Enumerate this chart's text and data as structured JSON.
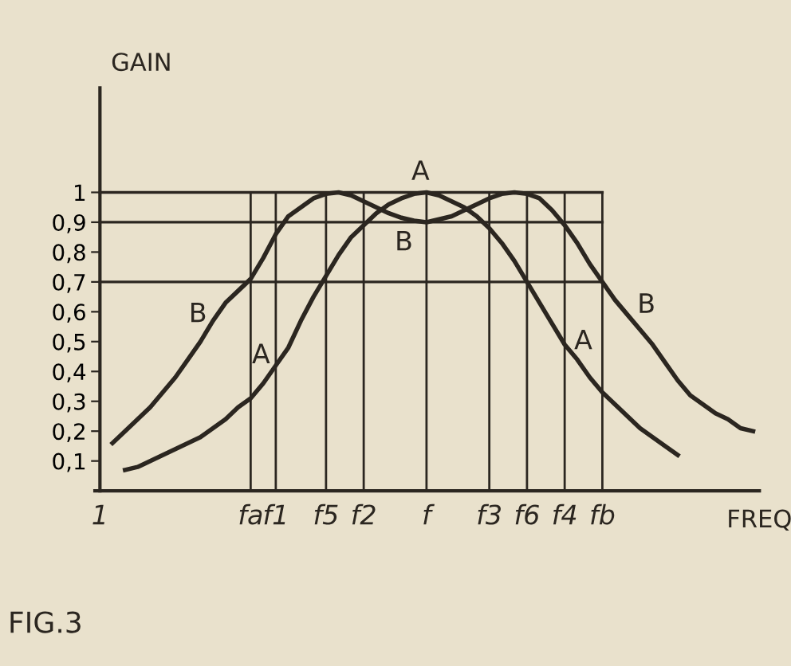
{
  "chart_data": {
    "type": "line",
    "ylabel": "GAIN",
    "xlabel": "FREQ",
    "ylim": [
      0,
      1.35
    ],
    "categories": [
      "1",
      null,
      null,
      null,
      null,
      null,
      null,
      null,
      null,
      null,
      null,
      null,
      "fa",
      null,
      "f1",
      null,
      null,
      null,
      "f5",
      null,
      null,
      "f2",
      null,
      null,
      null,
      null,
      "f",
      null,
      null,
      null,
      null,
      "f3",
      null,
      null,
      "f6",
      null,
      null,
      "f4",
      null,
      null,
      "fb",
      null,
      null,
      null,
      null,
      null,
      null,
      null,
      null,
      null,
      null,
      null,
      null
    ],
    "yticks": [
      {
        "value": 0.1,
        "label": "0,1"
      },
      {
        "value": 0.2,
        "label": "0,2"
      },
      {
        "value": 0.3,
        "label": "0,3"
      },
      {
        "value": 0.4,
        "label": "0,4"
      },
      {
        "value": 0.5,
        "label": "0,5"
      },
      {
        "value": 0.6,
        "label": "0,6"
      },
      {
        "value": 0.7,
        "label": "0,7"
      },
      {
        "value": 0.8,
        "label": "0,8"
      },
      {
        "value": 0.9,
        "label": "0,9"
      },
      {
        "value": 1,
        "label": "1"
      }
    ],
    "grid": "x",
    "marker": "none",
    "line_style": "solid",
    "series": [
      {
        "color": "#2b2620",
        "values": [
          null,
          null,
          0.07,
          0.08,
          0.1,
          0.12,
          0.14,
          0.16,
          0.18,
          0.21,
          0.24,
          0.28,
          0.31,
          0.36,
          0.42,
          0.48,
          0.57,
          0.65,
          0.72,
          0.79,
          0.85,
          0.89,
          0.93,
          0.96,
          0.98,
          0.995,
          1.0,
          0.99,
          0.97,
          0.95,
          0.92,
          0.88,
          0.83,
          0.77,
          0.7,
          0.63,
          0.56,
          0.49,
          0.44,
          0.38,
          0.33,
          0.29,
          0.25,
          0.21,
          0.18,
          0.15,
          0.12,
          null,
          null,
          null,
          null,
          null,
          null
        ]
      },
      {
        "color": "#2b2620",
        "values": [
          null,
          0.16,
          0.2,
          0.24,
          0.28,
          0.33,
          0.38,
          0.44,
          0.5,
          0.57,
          0.63,
          0.67,
          0.71,
          0.78,
          0.86,
          0.92,
          0.95,
          0.98,
          0.995,
          1.0,
          0.99,
          0.97,
          0.95,
          0.93,
          0.915,
          0.905,
          0.9,
          0.91,
          0.92,
          0.94,
          0.96,
          0.98,
          0.995,
          1.0,
          0.995,
          0.98,
          0.94,
          0.89,
          0.83,
          0.76,
          0.7,
          0.64,
          0.59,
          0.54,
          0.49,
          0.43,
          0.37,
          0.32,
          0.29,
          0.26,
          0.24,
          0.21,
          0.2
        ]
      }
    ],
    "ref_lines": [
      {
        "axis": "y",
        "value": 1
      },
      {
        "axis": "y",
        "value": 0.9
      },
      {
        "axis": "y",
        "value": 0.7
      }
    ],
    "annotations": [
      "A",
      "A",
      "A",
      "B",
      "B",
      "B",
      "FIG.3"
    ]
  }
}
